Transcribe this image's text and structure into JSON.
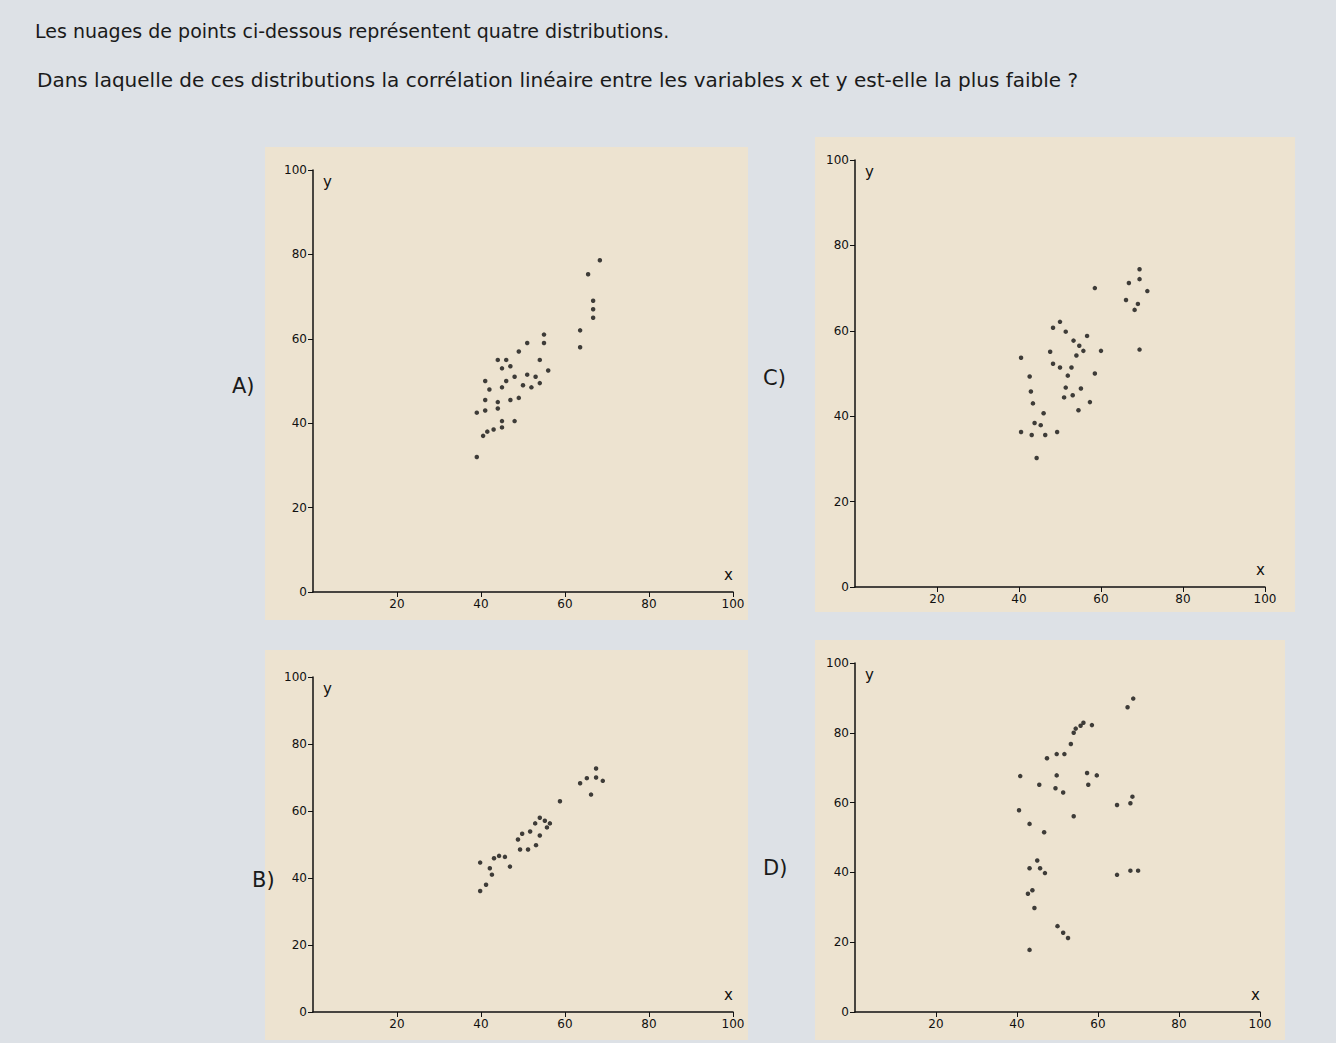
{
  "header": {
    "intro": "Les nuages de points ci-dessous représentent quatre distributions.",
    "question": "Dans laquelle de ces distributions la corrélation linéaire entre les variables x et y est-elle la plus faible ?"
  },
  "chart_data": [
    {
      "type": "scatter",
      "title": "A)",
      "x_label": "x",
      "y_label": "y",
      "xlim": [
        0,
        100
      ],
      "ylim": [
        0,
        100
      ],
      "xticks": [
        20,
        40,
        60,
        80,
        100
      ],
      "yticks": [
        0,
        20,
        40,
        60,
        80,
        100
      ],
      "color": "#111111",
      "x": [
        39,
        40.5,
        41.5,
        43,
        45,
        45,
        48,
        39,
        41,
        44,
        41,
        44,
        47,
        49,
        42,
        45,
        50,
        52,
        54,
        41,
        46,
        48,
        51,
        53,
        56,
        45,
        47,
        44,
        46,
        54,
        49,
        51,
        55,
        55,
        63.6,
        63.6,
        66.7,
        66.7,
        66.7,
        65.5,
        68.3
      ],
      "values": [
        32,
        37,
        38,
        38.5,
        39,
        40.5,
        40.5,
        42.5,
        43,
        43.5,
        45.5,
        45,
        45.5,
        46,
        48,
        48.5,
        49,
        48.5,
        49.5,
        50,
        50,
        51,
        51.5,
        51,
        52.5,
        53,
        53.5,
        55,
        55,
        55,
        57,
        59,
        59,
        61,
        62,
        58,
        65,
        67,
        69,
        75.3,
        78.6
      ]
    },
    {
      "type": "scatter",
      "title": "B)",
      "x_label": "x",
      "y_label": "y",
      "xlim": [
        0,
        100
      ],
      "ylim": [
        0,
        100
      ],
      "xticks": [
        20,
        40,
        60,
        80,
        100
      ],
      "yticks": [
        0,
        20,
        40,
        60,
        80,
        100
      ],
      "color": "#111111",
      "x": [
        39.8,
        41.2,
        42.6,
        39.8,
        42.1,
        43.1,
        44.3,
        45.7,
        46.9,
        49.3,
        51.2,
        53.1,
        48.8,
        49.8,
        51.7,
        54,
        55.7,
        56.4,
        52.9,
        54,
        55.2,
        58.8,
        63.6,
        65.2,
        67.4,
        69,
        66.2,
        67.4
      ],
      "values": [
        36.1,
        38,
        41,
        44.6,
        42.9,
        45.9,
        46.6,
        46.3,
        43.4,
        48.5,
        48.5,
        49.8,
        51.5,
        53.2,
        53.9,
        52.7,
        55.1,
        56.3,
        56.3,
        58,
        57.1,
        62.9,
        68.3,
        69.8,
        70,
        69,
        64.9,
        72.7
      ]
    },
    {
      "type": "scatter",
      "title": "C)",
      "x_label": "x",
      "y_label": "y",
      "xlim": [
        0,
        100
      ],
      "ylim": [
        0,
        100
      ],
      "xticks": [
        20,
        40,
        60,
        80,
        100
      ],
      "yticks": [
        0,
        20,
        40,
        60,
        80,
        100
      ],
      "color": "#111111",
      "x": [
        44.3,
        40.5,
        43.1,
        46.4,
        49.3,
        43.8,
        45.3,
        46,
        43.4,
        54.5,
        42.9,
        51,
        53.1,
        57.3,
        42.6,
        48.3,
        50,
        51.4,
        55.1,
        58.5,
        40.5,
        51.9,
        52.8,
        54,
        55.7,
        56.6,
        60,
        48.3,
        50,
        51.4,
        53.3,
        54.7,
        69.4,
        58.5,
        66.1,
        68.2,
        69,
        66.8,
        69.4,
        69.4,
        71.3,
        47.6
      ],
      "values": [
        30.2,
        36.3,
        35.6,
        35.6,
        36.3,
        38.4,
        37.9,
        40.7,
        43,
        41.4,
        45.8,
        44.4,
        44.9,
        43.3,
        49.3,
        52.3,
        51.4,
        46.7,
        46.5,
        50,
        53.7,
        49.5,
        51.4,
        54.2,
        55.3,
        58.8,
        55.3,
        60.7,
        62.1,
        59.8,
        57.7,
        56.5,
        55.6,
        70,
        67.2,
        64.9,
        66.3,
        71.2,
        74.4,
        72.1,
        69.3,
        55.1
      ]
    },
    {
      "type": "scatter",
      "title": "D)",
      "x_label": "x",
      "y_label": "y",
      "xlim": [
        0,
        100
      ],
      "ylim": [
        0,
        100
      ],
      "xticks": [
        20,
        40,
        60,
        80,
        100
      ],
      "yticks": [
        0,
        20,
        40,
        60,
        80,
        100
      ],
      "color": "#111111",
      "x": [
        43.1,
        51.4,
        52.6,
        50,
        44.3,
        42.7,
        43.8,
        46.9,
        45.7,
        45,
        43.1,
        64.7,
        68,
        69.9,
        46.7,
        43.1,
        40.5,
        54,
        64.7,
        68,
        68.5,
        57.6,
        59.7,
        57.3,
        45.5,
        49.5,
        51.4,
        49.8,
        40.8,
        47.4,
        49.8,
        53.3,
        51.7,
        54,
        55.7,
        54.5,
        56.4,
        58.5,
        67.3,
        68.7
      ],
      "values": [
        17.8,
        22.7,
        21.2,
        24.6,
        29.8,
        33.9,
        34.9,
        39.8,
        41.2,
        43.4,
        41.2,
        39.3,
        40.5,
        40.5,
        51.5,
        53.9,
        57.8,
        56.1,
        59.3,
        59.8,
        61.7,
        65.1,
        67.8,
        68.5,
        65.1,
        64.1,
        62.9,
        67.8,
        67.6,
        72.7,
        73.9,
        76.8,
        73.9,
        80,
        82,
        81.2,
        82.9,
        82.2,
        87.3,
        89.8
      ]
    }
  ]
}
